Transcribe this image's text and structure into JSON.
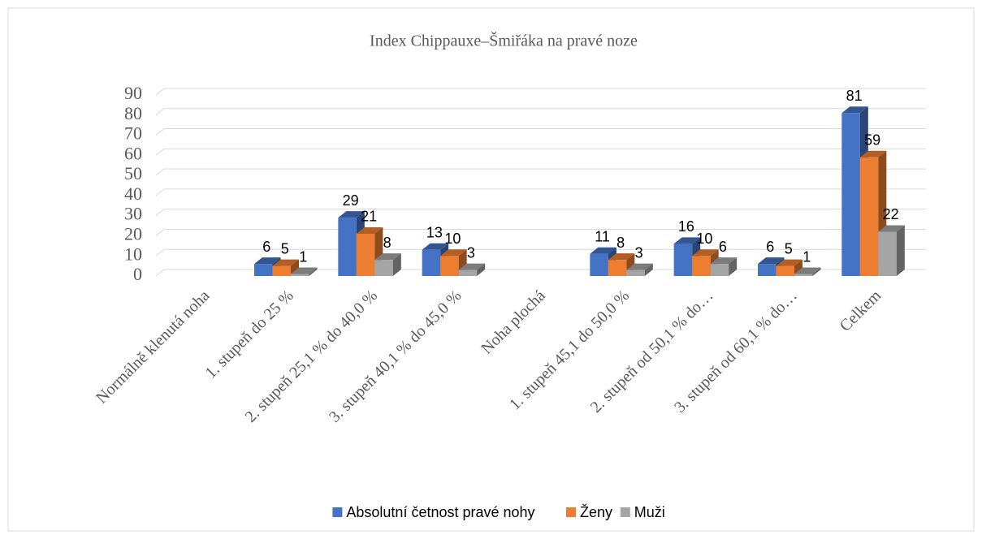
{
  "chart_data": {
    "type": "bar3d",
    "title": "Index Chippauxe–Šmiřáka na pravé noze",
    "categories": [
      "Normálně klenutá noha",
      "1. stupeň do 25 %",
      "2. stupeň 25,1 % do 40,0 %",
      "3. stupeň 40,1 % do 45,0 %",
      "Noha plochá",
      "1. stupeň 45,1 do 50,0 %",
      "2. stupeň od 50,1 % do…",
      "3. stupeň od 60,1 % do…",
      "Celkem"
    ],
    "series": [
      {
        "name": "Absolutní četnost pravé nohy",
        "color": "#4472c4",
        "values": [
          null,
          6,
          29,
          13,
          null,
          11,
          16,
          6,
          81
        ]
      },
      {
        "name": "Ženy",
        "color": "#ed7d31",
        "values": [
          null,
          5,
          21,
          10,
          null,
          8,
          10,
          5,
          59
        ]
      },
      {
        "name": "Muži",
        "color": "#a5a5a5",
        "values": [
          null,
          1,
          8,
          3,
          null,
          3,
          6,
          1,
          22
        ]
      }
    ],
    "ylim": [
      0,
      90
    ],
    "yticks": [
      0,
      10,
      20,
      30,
      40,
      50,
      60,
      70,
      80,
      90
    ],
    "grid": true,
    "legend": "bottom"
  }
}
